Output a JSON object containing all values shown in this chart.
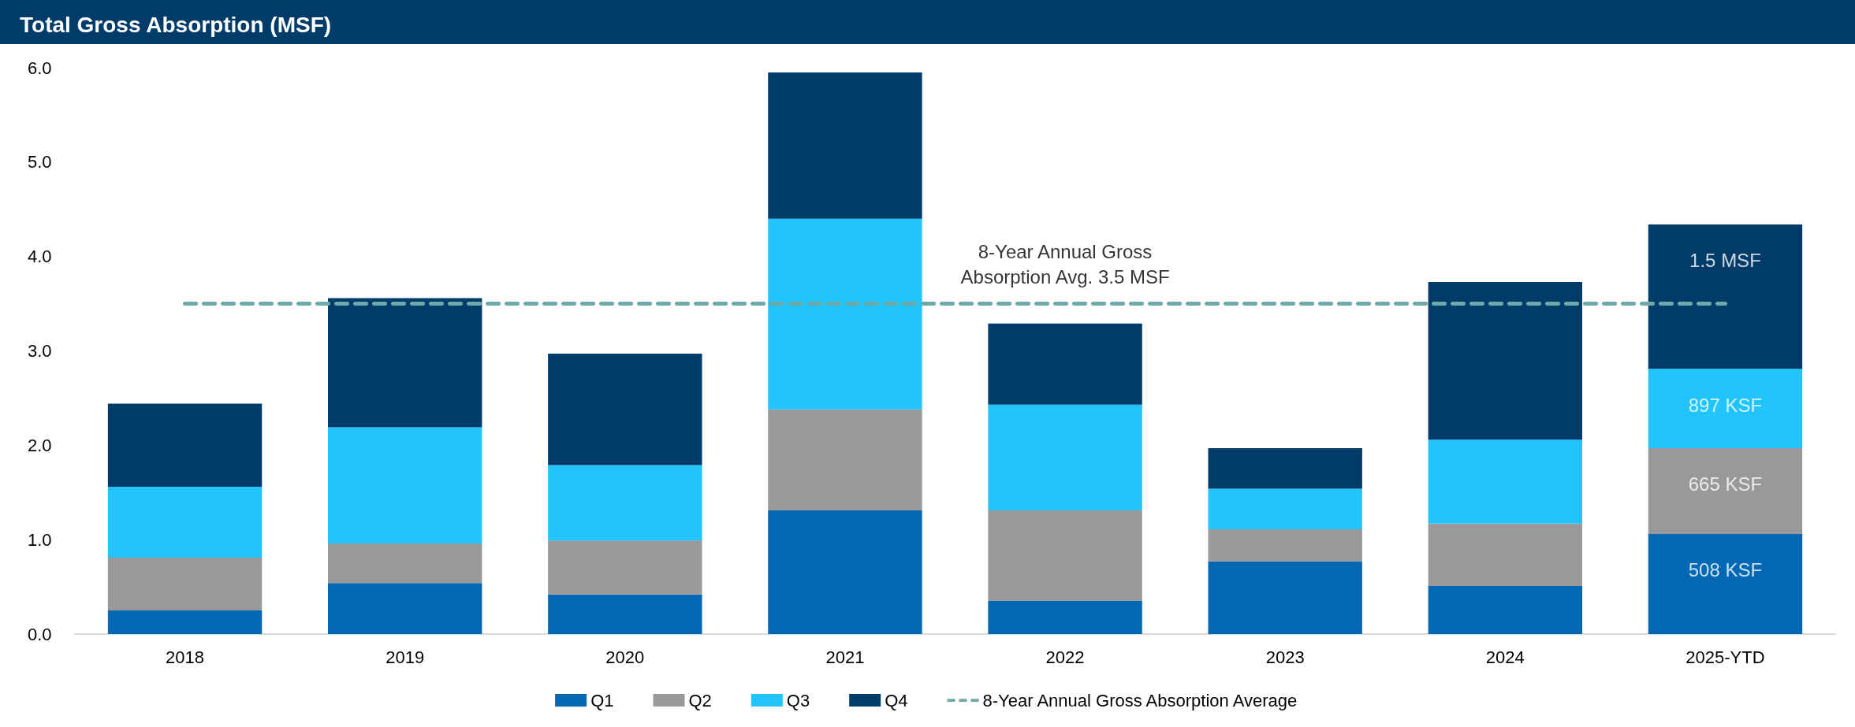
{
  "chart_data": {
    "type": "bar",
    "title": "Total Gross Absorption (MSF)",
    "stacked": true,
    "categories": [
      "2018",
      "2019",
      "2020",
      "2021",
      "2022",
      "2023",
      "2024",
      "2025-YTD"
    ],
    "series": [
      {
        "name": "Q1",
        "color": "#0268b3",
        "values": [
          0.25,
          0.54,
          0.42,
          1.31,
          0.35,
          0.77,
          0.51,
          1.06
        ]
      },
      {
        "name": "Q2",
        "color": "#999999",
        "values": [
          0.56,
          0.42,
          0.57,
          1.07,
          0.96,
          0.34,
          0.66,
          0.91
        ]
      },
      {
        "name": "Q3",
        "color": "#22c4fd",
        "values": [
          0.75,
          1.23,
          0.8,
          2.02,
          1.12,
          0.43,
          0.89,
          0.84
        ]
      },
      {
        "name": "Q4",
        "color": "#003c69",
        "values": [
          0.88,
          1.37,
          1.18,
          1.55,
          0.86,
          0.43,
          1.67,
          1.53
        ]
      }
    ],
    "ylim": [
      0,
      6
    ],
    "yticks": [
      {
        "value": 0,
        "label": "0.0"
      },
      {
        "value": 1,
        "label": "1.0"
      },
      {
        "value": 2,
        "label": "2.0"
      },
      {
        "value": 3,
        "label": "3.0"
      },
      {
        "value": 4,
        "label": "4.0"
      },
      {
        "value": 5,
        "label": "5.0"
      },
      {
        "value": 6,
        "label": "6.0"
      }
    ],
    "ref_lines": [
      {
        "axis": "y",
        "value": 3.5,
        "label": "8-Year Annual Gross Absorption Average",
        "color": "#6fa8a8",
        "line_style": "dashed"
      }
    ],
    "annotations": [
      {
        "text": "8-Year Annual Gross\nAbsorption Avg. 3.5 MSF",
        "x": "2022",
        "y": 3.5
      },
      {
        "text": "508 KSF",
        "x": "2025-YTD",
        "y": 1.06
      },
      {
        "text": "665 KSF",
        "x": "2025-YTD",
        "y": 1.97
      },
      {
        "text": "897 KSF",
        "x": "2025-YTD",
        "y": 2.81
      },
      {
        "text": "1.5 MSF",
        "x": "2025-YTD",
        "y": 4.34
      }
    ],
    "grid": false,
    "legend": "bottom"
  }
}
